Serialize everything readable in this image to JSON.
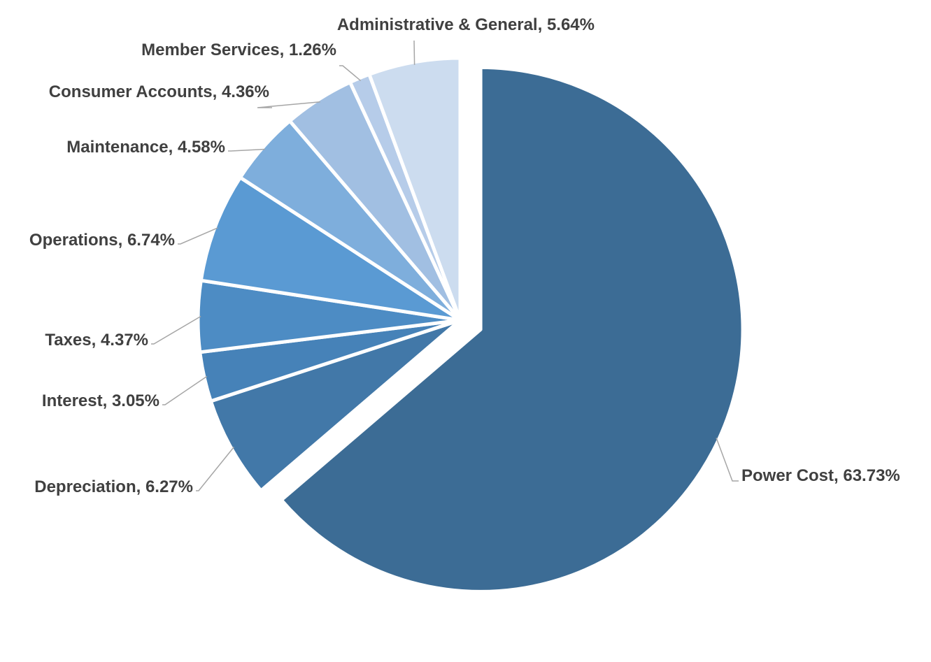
{
  "chart_data": {
    "type": "pie",
    "title": "",
    "unit": "%",
    "slices": [
      {
        "label": "Power Cost",
        "value": 63.73,
        "display": "Power Cost, 63.73%",
        "color": "#3c6c95",
        "exploded": true
      },
      {
        "label": "Depreciation",
        "value": 6.27,
        "display": "Depreciation, 6.27%",
        "color": "#4278a8",
        "exploded": false
      },
      {
        "label": "Interest",
        "value": 3.05,
        "display": "Interest, 3.05%",
        "color": "#4682b8",
        "exploded": false
      },
      {
        "label": "Taxes",
        "value": 4.37,
        "display": "Taxes, 4.37%",
        "color": "#4d8cc4",
        "exploded": false
      },
      {
        "label": "Operations",
        "value": 6.74,
        "display": "Operations, 6.74%",
        "color": "#5a9ad3",
        "exploded": false
      },
      {
        "label": "Maintenance",
        "value": 4.58,
        "display": "Maintenance, 4.58%",
        "color": "#7eaedc",
        "exploded": false
      },
      {
        "label": "Consumer Accounts",
        "value": 4.36,
        "display": "Consumer Accounts, 4.36%",
        "color": "#a1bfe2",
        "exploded": false
      },
      {
        "label": "Member Services",
        "value": 1.26,
        "display": "Member Services, 1.26%",
        "color": "#b6cce9",
        "exploded": false
      },
      {
        "label": "Administrative & General",
        "value": 5.64,
        "display": "Administrative & General, 5.64%",
        "color": "#ccdcef",
        "exploded": false
      }
    ]
  }
}
